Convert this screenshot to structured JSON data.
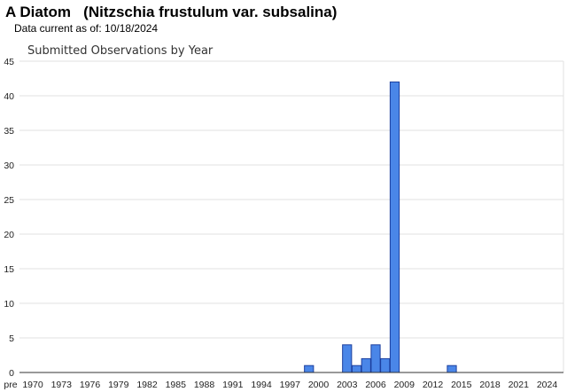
{
  "header": {
    "title": "A Diatom   (Nitzschia frustulum var. subsalina)",
    "data_current": "Data current as of: 10/18/2024"
  },
  "colors": {
    "bar_fill": "#4a86e8",
    "bar_stroke": "#1c3f9e",
    "grid": "#e0e0e0",
    "axis": "#333333"
  },
  "chart_data": {
    "type": "bar",
    "title": "Submitted Observations by Year",
    "xlabel": "",
    "ylabel": "",
    "ylim": [
      0,
      45
    ],
    "yticks": [
      0,
      5,
      10,
      15,
      20,
      25,
      30,
      35,
      40,
      45
    ],
    "grid": true,
    "legend": "none",
    "x_tick_labels": [
      "pre",
      "1970",
      "1973",
      "1976",
      "1979",
      "1982",
      "1985",
      "1988",
      "1991",
      "1994",
      "1997",
      "2000",
      "2003",
      "2006",
      "2009",
      "2012",
      "2015",
      "2018",
      "2021",
      "2024"
    ],
    "categories": [
      "pre",
      "1970",
      "1971",
      "1972",
      "1973",
      "1974",
      "1975",
      "1976",
      "1977",
      "1978",
      "1979",
      "1980",
      "1981",
      "1982",
      "1983",
      "1984",
      "1985",
      "1986",
      "1987",
      "1988",
      "1989",
      "1990",
      "1991",
      "1992",
      "1993",
      "1994",
      "1995",
      "1996",
      "1997",
      "1998",
      "1999",
      "2000",
      "2001",
      "2002",
      "2003",
      "2004",
      "2005",
      "2006",
      "2007",
      "2008",
      "2009",
      "2010",
      "2011",
      "2012",
      "2013",
      "2014",
      "2015",
      "2016",
      "2017",
      "2018",
      "2019",
      "2020",
      "2021",
      "2022",
      "2023",
      "2024"
    ],
    "values": [
      0,
      0,
      0,
      0,
      0,
      0,
      0,
      0,
      0,
      0,
      0,
      0,
      0,
      0,
      0,
      0,
      0,
      0,
      0,
      0,
      0,
      0,
      0,
      0,
      0,
      0,
      0,
      0,
      0,
      0,
      1,
      0,
      0,
      0,
      4,
      1,
      2,
      4,
      2,
      42,
      0,
      0,
      0,
      0,
      0,
      1,
      0,
      0,
      0,
      0,
      0,
      0,
      0,
      0,
      0,
      0
    ]
  }
}
